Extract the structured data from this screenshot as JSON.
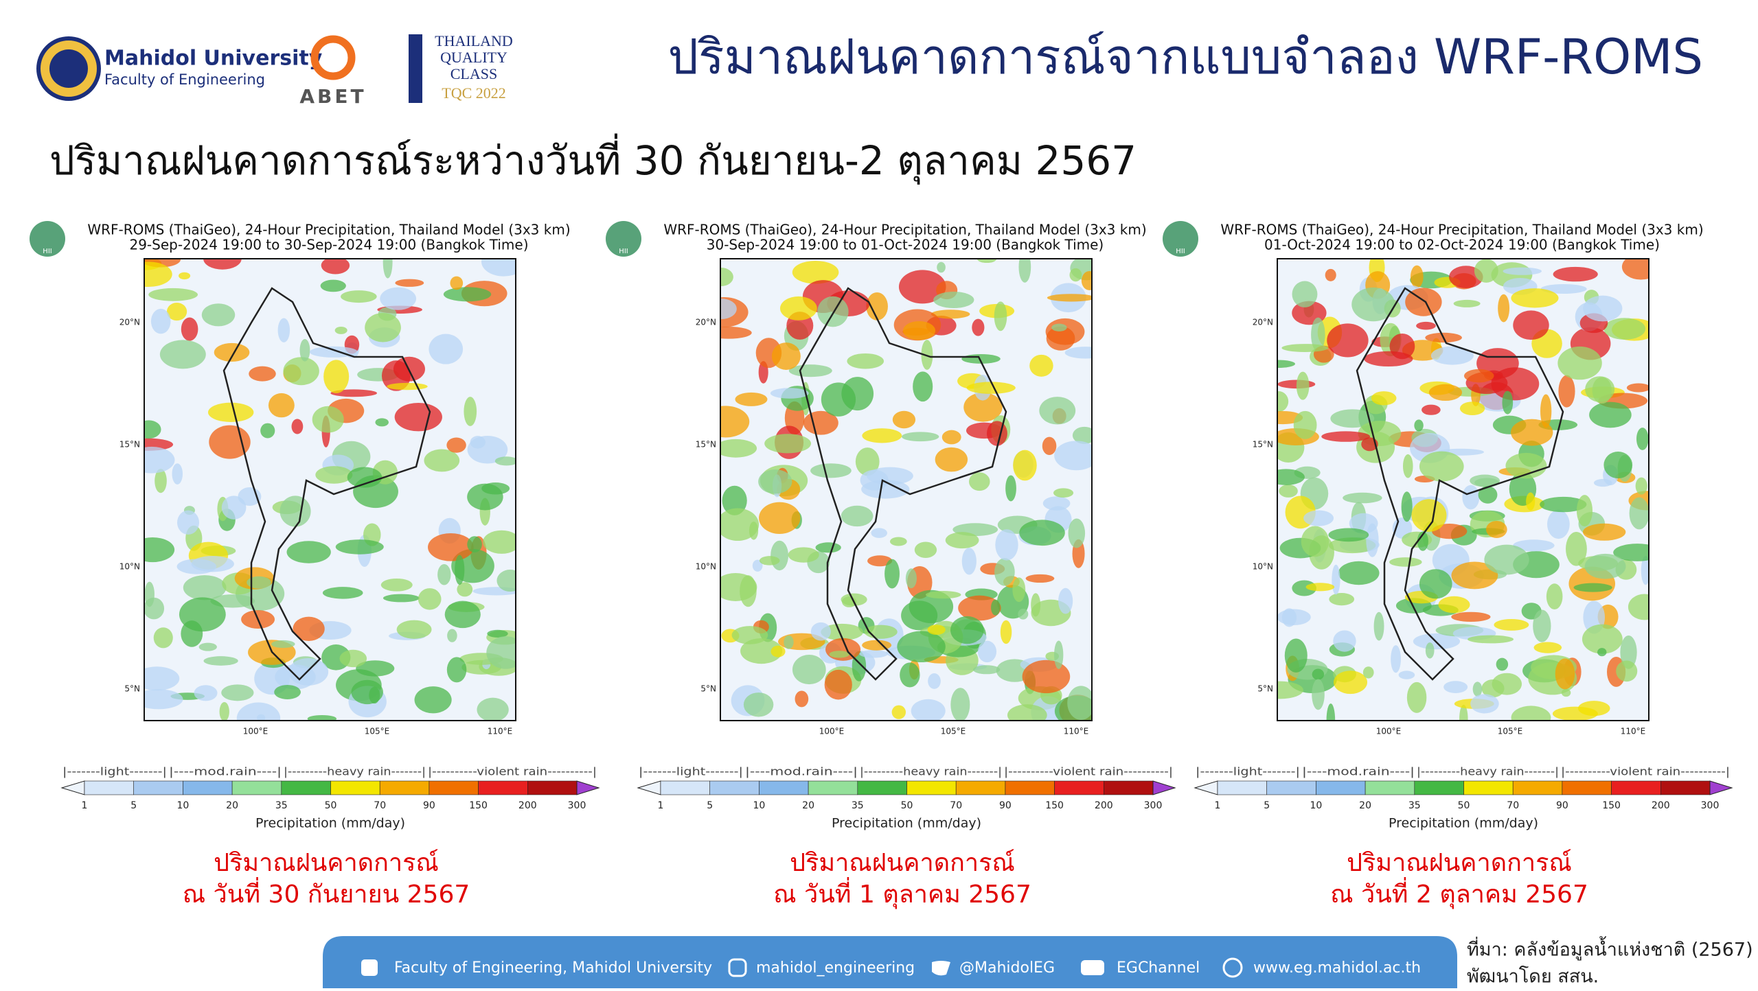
{
  "header": {
    "university": "Mahidol University",
    "faculty": "Faculty of Engineering",
    "abet": "ABET",
    "tqc": [
      "THAILAND",
      "QUALITY",
      "CLASS",
      "TQC 2022"
    ],
    "title": "ปริมาณฝนคาดการณ์จากแบบจำลอง WRF-ROMS"
  },
  "subtitle": "ปริมาณฝนคาดการณ์ระหว่างวันที่ 30 กันยายน-2 ตุลาคม 2567",
  "map_axes": {
    "lat": [
      "20°N",
      "15°N",
      "10°N",
      "5°N"
    ],
    "lon": [
      "100°E",
      "105°E",
      "110°E"
    ],
    "logo": "HII"
  },
  "colorbar": {
    "classes": [
      "|-------light-------|",
      "|----mod.rain----|",
      "|---------heavy rain-------|",
      "|----------violent rain----------|"
    ],
    "ticks": [
      "1",
      "5",
      "10",
      "20",
      "35",
      "50",
      "70",
      "90",
      "150",
      "200",
      "300"
    ],
    "label": "Precipitation (mm/day)"
  },
  "panels": [
    {
      "title": [
        "WRF-ROMS (ThaiGeo), 24-Hour Precipitation, Thailand Model (3x3 km)",
        "29-Sep-2024 19:00 to 30-Sep-2024 19:00 (Bangkok Time)"
      ],
      "caption": [
        "ปริมาณฝนคาดการณ์",
        "ณ วันที่ 30 กันยายน 2567"
      ]
    },
    {
      "title": [
        "WRF-ROMS (ThaiGeo), 24-Hour Precipitation, Thailand Model (3x3 km)",
        "30-Sep-2024 19:00 to 01-Oct-2024 19:00 (Bangkok Time)"
      ],
      "caption": [
        "ปริมาณฝนคาดการณ์",
        "ณ วันที่ 1 ตุลาคม 2567"
      ]
    },
    {
      "title": [
        "WRF-ROMS (ThaiGeo), 24-Hour Precipitation, Thailand Model (3x3 km)",
        "01-Oct-2024 19:00 to 02-Oct-2024 19:00 (Bangkok Time)"
      ],
      "caption": [
        "ปริมาณฝนคาดการณ์",
        "ณ วันที่ 2 ตุลาคม 2567"
      ]
    }
  ],
  "footer": {
    "items": [
      "Faculty of Engineering, Mahidol University",
      "mahidol_engineering",
      "@MahidolEG",
      "EGChannel",
      "www.eg.mahidol.ac.th"
    ],
    "source": [
      "ที่มา: คลังข้อมูลน้ำแห่งชาติ (2567)",
      "พัฒนาโดย สสน."
    ]
  }
}
